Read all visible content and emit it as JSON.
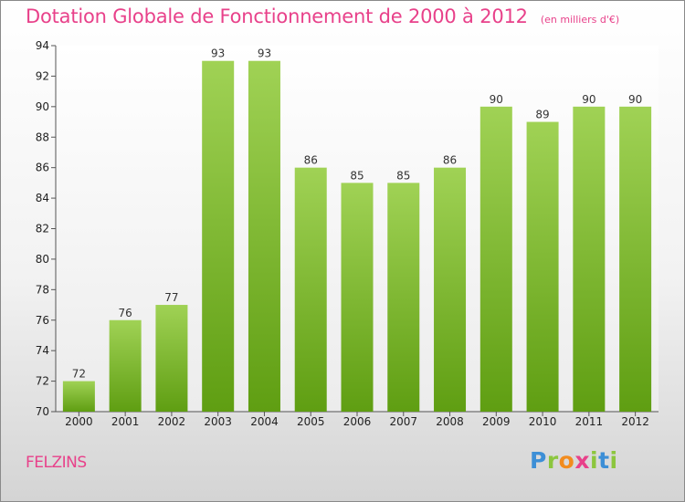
{
  "header": {
    "title": "Dotation Globale de Fonctionnement de 2000 à 2012",
    "subtitle": "(en milliers d'€)"
  },
  "footer": {
    "commune": "FELZINS",
    "logo": [
      "P",
      "r",
      "o",
      "x",
      "i",
      "t",
      "i"
    ]
  },
  "colors": {
    "bar_top": "#a0d255",
    "bar_bottom": "#5f9e12",
    "title": "#e8418a"
  },
  "chart_data": {
    "type": "bar",
    "title": "Dotation Globale de Fonctionnement de 2000 à 2012",
    "subtitle": "(en milliers d'€)",
    "categories": [
      "2000",
      "2001",
      "2002",
      "2003",
      "2004",
      "2005",
      "2006",
      "2007",
      "2008",
      "2009",
      "2010",
      "2011",
      "2012"
    ],
    "values": [
      72,
      76,
      77,
      93,
      93,
      86,
      85,
      85,
      86,
      90,
      89,
      90,
      90
    ],
    "ylim": [
      70,
      94
    ],
    "yticks": [
      70,
      72,
      74,
      76,
      78,
      80,
      82,
      84,
      86,
      88,
      90,
      92,
      94
    ],
    "grid": false,
    "legend": "none"
  }
}
